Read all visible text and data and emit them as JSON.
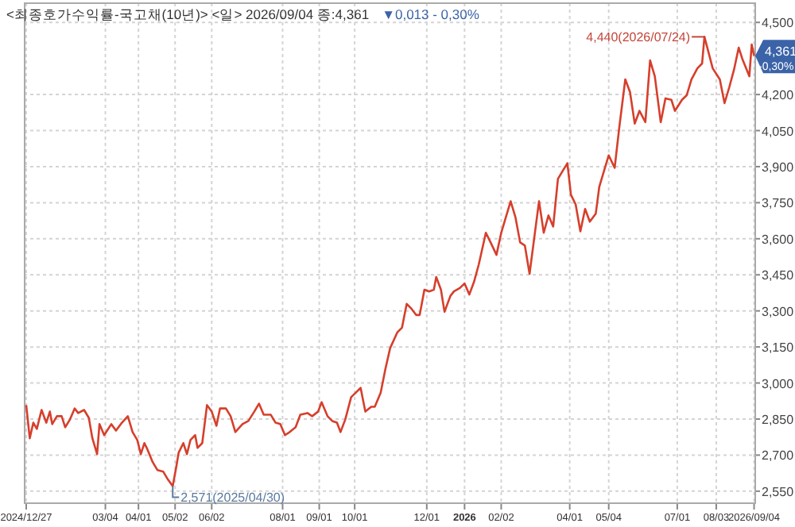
{
  "chart_data": {
    "type": "line",
    "title": "<최종호가수익률-국고채(10년)> <일> 2026/09/04 종:4,361",
    "subtitle": "▼0,013 - 0,30%",
    "annotations": [
      {
        "text": "4,440(2026/07/24)",
        "x": "2026-07-24",
        "y": 4440
      },
      {
        "text": "2,571(2025/04/30)",
        "x": "2025-04-30",
        "y": 2571
      },
      {
        "text": "4,361 -0,30%",
        "x": "2026-09-04",
        "y": 4361
      }
    ],
    "series": [
      {
        "color": "#d63f2c",
        "x": [
          "2024-12-27",
          "2024-12-30",
          "2025-01-02",
          "2025-01-05",
          "2025-01-09",
          "2025-01-13",
          "2025-01-16",
          "2025-01-18",
          "2025-01-22",
          "2025-01-26",
          "2025-01-29",
          "2025-02-02",
          "2025-02-06",
          "2025-02-09",
          "2025-02-14",
          "2025-02-18",
          "2025-02-21",
          "2025-02-25",
          "2025-02-27",
          "2025-03-03",
          "2025-03-09",
          "2025-03-13",
          "2025-03-18",
          "2025-03-23",
          "2025-03-27",
          "2025-03-31",
          "2025-04-03",
          "2025-04-06",
          "2025-04-08",
          "2025-04-13",
          "2025-04-17",
          "2025-04-22",
          "2025-04-26",
          "2025-04-30",
          "2025-05-03",
          "2025-05-05",
          "2025-05-09",
          "2025-05-12",
          "2025-05-15",
          "2025-05-19",
          "2025-05-21",
          "2025-05-25",
          "2025-05-29",
          "2025-06-02",
          "2025-06-06",
          "2025-06-09",
          "2025-06-14",
          "2025-06-18",
          "2025-06-22",
          "2025-06-28",
          "2025-07-03",
          "2025-07-08",
          "2025-07-12",
          "2025-07-16",
          "2025-07-22",
          "2025-07-26",
          "2025-07-30",
          "2025-08-03",
          "2025-08-07",
          "2025-08-12",
          "2025-08-16",
          "2025-08-22",
          "2025-08-26",
          "2025-08-31",
          "2025-09-03",
          "2025-09-08",
          "2025-09-12",
          "2025-09-16",
          "2025-09-19",
          "2025-09-23",
          "2025-09-28",
          "2025-10-02",
          "2025-10-06",
          "2025-10-10",
          "2025-10-15",
          "2025-10-18",
          "2025-10-23",
          "2025-10-27",
          "2025-10-31",
          "2025-11-06",
          "2025-11-10",
          "2025-11-14",
          "2025-11-18",
          "2025-11-22",
          "2025-11-25",
          "2025-11-29",
          "2025-12-03",
          "2025-12-07",
          "2025-12-09",
          "2025-12-13",
          "2025-12-16",
          "2025-12-21",
          "2025-12-24",
          "2025-12-29",
          "2026-01-02",
          "2026-01-06",
          "2026-01-10",
          "2026-01-14",
          "2026-01-20",
          "2026-01-24",
          "2026-01-29",
          "2026-02-02",
          "2026-02-06",
          "2026-02-10",
          "2026-02-14",
          "2026-02-18",
          "2026-02-22",
          "2026-02-26",
          "2026-03-02",
          "2026-03-06",
          "2026-03-10",
          "2026-03-14",
          "2026-03-18",
          "2026-03-22",
          "2026-03-26",
          "2026-03-30",
          "2026-04-02",
          "2026-04-06",
          "2026-04-10",
          "2026-04-14",
          "2026-04-18",
          "2026-04-23",
          "2026-04-26",
          "2026-04-30",
          "2026-05-04",
          "2026-05-09",
          "2026-05-13",
          "2026-05-18",
          "2026-05-22",
          "2026-05-26",
          "2026-05-30",
          "2026-06-04",
          "2026-06-08",
          "2026-06-12",
          "2026-06-17",
          "2026-06-21",
          "2026-06-26",
          "2026-06-29",
          "2026-07-05",
          "2026-07-09",
          "2026-07-13",
          "2026-07-18",
          "2026-07-22",
          "2026-07-24",
          "2026-07-31",
          "2026-08-06",
          "2026-08-10",
          "2026-08-14",
          "2026-08-18",
          "2026-08-22",
          "2026-08-25",
          "2026-08-31",
          "2026-09-02",
          "2026-09-04"
        ],
        "values": [
          2908,
          2770,
          2835,
          2809,
          2888,
          2835,
          2881,
          2829,
          2862,
          2862,
          2816,
          2848,
          2894,
          2875,
          2888,
          2855,
          2770,
          2704,
          2829,
          2783,
          2829,
          2802,
          2835,
          2862,
          2796,
          2763,
          2704,
          2750,
          2730,
          2671,
          2638,
          2631,
          2598,
          2571,
          2651,
          2710,
          2750,
          2704,
          2763,
          2783,
          2730,
          2750,
          2908,
          2881,
          2822,
          2894,
          2894,
          2862,
          2796,
          2829,
          2842,
          2881,
          2914,
          2868,
          2868,
          2835,
          2829,
          2783,
          2796,
          2816,
          2868,
          2875,
          2862,
          2881,
          2920,
          2862,
          2842,
          2835,
          2796,
          2848,
          2941,
          2960,
          2980,
          2881,
          2901,
          2901,
          2960,
          3059,
          3145,
          3210,
          3230,
          3329,
          3309,
          3283,
          3283,
          3388,
          3381,
          3388,
          3441,
          3388,
          3296,
          3362,
          3381,
          3395,
          3414,
          3368,
          3421,
          3493,
          3625,
          3585,
          3533,
          3625,
          3691,
          3756,
          3691,
          3585,
          3572,
          3454,
          3605,
          3756,
          3625,
          3697,
          3651,
          3849,
          3882,
          3914,
          3783,
          3743,
          3631,
          3724,
          3671,
          3704,
          3816,
          3882,
          3947,
          3895,
          4066,
          4263,
          4210,
          4079,
          4132,
          4085,
          4342,
          4276,
          4085,
          4184,
          4178,
          4132,
          4178,
          4197,
          4263,
          4309,
          4329,
          4440,
          4309,
          4263,
          4164,
          4230,
          4303,
          4395,
          4349,
          4276,
          4408,
          4361
        ]
      }
    ],
    "xlim": [
      "2024-12-25",
      "2026-09-05"
    ],
    "xticks": [
      {
        "value": "2024-12-27",
        "label": "2024/12/27"
      },
      {
        "value": "2025-03-04",
        "label": "03/04"
      },
      {
        "value": "2025-04-01",
        "label": "04/01"
      },
      {
        "value": "2025-05-02",
        "label": "05/02"
      },
      {
        "value": "2025-06-02",
        "label": "06/02"
      },
      {
        "value": "2025-08-01",
        "label": "08/01"
      },
      {
        "value": "2025-09-01",
        "label": "09/01"
      },
      {
        "value": "2025-10-01",
        "label": "10/01"
      },
      {
        "value": "2025-12-01",
        "label": "12/01"
      },
      {
        "value": "2026-01-02",
        "label": "2026"
      },
      {
        "value": "2026-02-02",
        "label": "02/02"
      },
      {
        "value": "2026-04-01",
        "label": "04/01"
      },
      {
        "value": "2026-05-04",
        "label": "05/04"
      },
      {
        "value": "2026-07-01",
        "label": "07/01"
      },
      {
        "value": "2026-08-03",
        "label": "08/03"
      },
      {
        "value": "2026-09-04",
        "label": "2026/09/04"
      }
    ],
    "ylim": [
      2500,
      4580
    ],
    "yticks": [
      {
        "value": 2550,
        "label": "2,550"
      },
      {
        "value": 2700,
        "label": "2,700"
      },
      {
        "value": 2850,
        "label": "2,850"
      },
      {
        "value": 3000,
        "label": "3,000"
      },
      {
        "value": 3150,
        "label": "3,150"
      },
      {
        "value": 3300,
        "label": "3,300"
      },
      {
        "value": 3450,
        "label": "3,450"
      },
      {
        "value": 3600,
        "label": "3,600"
      },
      {
        "value": 3750,
        "label": "3,750"
      },
      {
        "value": 3900,
        "label": "3,900"
      },
      {
        "value": 4050,
        "label": "4,050"
      },
      {
        "value": 4200,
        "label": "4,200"
      },
      {
        "value": 4500,
        "label": "4,500"
      }
    ],
    "grid": true,
    "marker": "none",
    "line_style": "solid"
  }
}
